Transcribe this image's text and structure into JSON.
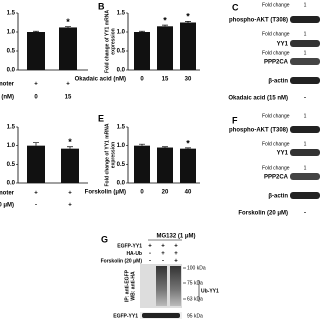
{
  "panel_a": {
    "values": [
      1.0,
      1.12
    ],
    "errors": [
      0.02,
      0.02
    ],
    "significance": [
      null,
      "*"
    ],
    "ylim": [
      0,
      1.5
    ],
    "yticks": [
      {
        "value": 0,
        "label": "0.0"
      },
      {
        "value": 0.5,
        "label": "0.5"
      },
      {
        "value": 1,
        "label": "1.0"
      },
      {
        "value": 1.5,
        "label": "1.5"
      }
    ],
    "rows": [
      {
        "label": "moter",
        "cells": [
          "+",
          "+"
        ]
      },
      {
        "label": "(nM)",
        "cells": [
          "0",
          "15"
        ]
      }
    ]
  },
  "panel_b": {
    "label": "B",
    "y_label": [
      "Fold change of YY1 mRNA",
      "expression"
    ],
    "x_label": "Okadaic acid (nM)",
    "categories": [
      "0",
      "15",
      "30"
    ],
    "values": [
      1.0,
      1.15,
      1.25
    ],
    "errors": [
      0.02,
      0.03,
      0.03
    ],
    "significance": [
      null,
      "*",
      "*"
    ],
    "ylim": [
      0,
      1.5
    ],
    "yticks": [
      {
        "value": 0,
        "label": "0.0"
      },
      {
        "value": 0.5,
        "label": "0.5"
      },
      {
        "value": 1,
        "label": "1.0"
      },
      {
        "value": 1.5,
        "label": "1.5"
      }
    ]
  },
  "panel_c": {
    "label": "C",
    "rows": [
      {
        "fold_label": "Fold change",
        "fold_value": "1",
        "protein": "phospho-AKT (T308)"
      },
      {
        "fold_label": "Fold change",
        "fold_value": "1",
        "protein": "YY1"
      },
      {
        "fold_label": "Fold change",
        "fold_value": "1",
        "protein": "PPP2CA"
      }
    ],
    "loading": "β-actin",
    "treatment": "Okadaic acid (15 nM)",
    "treatment_cell": "-"
  },
  "panel_d": {
    "values": [
      1.0,
      0.92
    ],
    "errors": [
      0.08,
      0.05
    ],
    "significance": [
      null,
      "*"
    ],
    "ylim": [
      0,
      1.5
    ],
    "yticks": [
      {
        "value": 0,
        "label": "0.0"
      },
      {
        "value": 0.5,
        "label": "0.5"
      },
      {
        "value": 1,
        "label": "1.0"
      },
      {
        "value": 1.5,
        "label": "1.5"
      }
    ],
    "rows": [
      {
        "label": "moter",
        "cells": [
          "+",
          "+"
        ]
      },
      {
        "label": "0 μM)",
        "cells": [
          "-",
          "+"
        ]
      }
    ]
  },
  "panel_e": {
    "label": "E",
    "y_label": [
      "Fold change of YY1 mRNA",
      "expression"
    ],
    "x_label": "Forskolin (μM)",
    "categories": [
      "0",
      "20",
      "40"
    ],
    "values": [
      1.0,
      0.95,
      0.92
    ],
    "errors": [
      0.04,
      0.02,
      0.02
    ],
    "significance": [
      null,
      null,
      "*"
    ],
    "ylim": [
      0,
      1.5
    ],
    "yticks": [
      {
        "value": 0,
        "label": "0.0"
      },
      {
        "value": 0.5,
        "label": "0.5"
      },
      {
        "value": 1,
        "label": "1.0"
      },
      {
        "value": 1.5,
        "label": "1.5"
      }
    ]
  },
  "panel_f": {
    "label": "F",
    "rows": [
      {
        "fold_label": "Fold change",
        "fold_value": "1",
        "protein": "phospho-AKT (T308)"
      },
      {
        "fold_label": "Fold change",
        "fold_value": "1",
        "protein": "YY1"
      },
      {
        "fold_label": "Fold change",
        "fold_value": "1",
        "protein": "PPP2CA"
      }
    ],
    "loading": "β-actin",
    "treatment": "Forskolin (20 μM)",
    "treatment_cell": "-"
  },
  "panel_g": {
    "label": "G",
    "header": "MG132 (1 μM)",
    "rows": [
      {
        "label": "EGFP-YY1",
        "cells": [
          "+",
          "+",
          "+"
        ]
      },
      {
        "label": "HA-Ub",
        "cells": [
          "-",
          "+",
          "+"
        ]
      },
      {
        "label": "Forskolin (20 μM)",
        "cells": [
          "-",
          "-",
          "+"
        ]
      }
    ],
    "ip_label": [
      "IP: anti-EGFP",
      "WB: anti-HA"
    ],
    "markers": [
      "100 kDa",
      "75 kDa",
      "63 kDa"
    ],
    "band_label": "Ub-YY1",
    "input_label": "EGFP-YY1",
    "input_marker": "95 kDa"
  }
}
